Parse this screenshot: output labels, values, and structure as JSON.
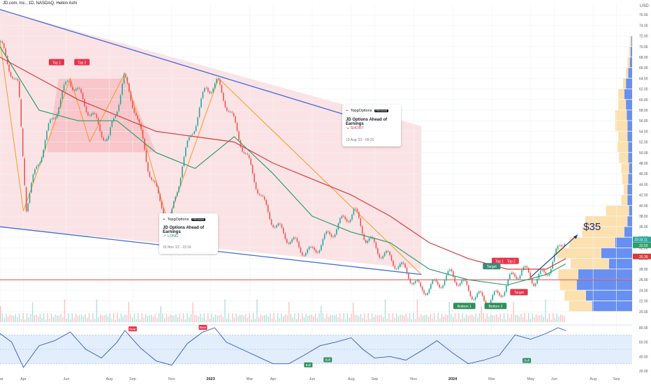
{
  "header": {
    "symbol_line": "JD.com, Inc., 1D, NASDAQ, Heikin Ashi"
  },
  "colors": {
    "up": "#26a69a",
    "down": "#ef5350",
    "channel": "#3f6bdc",
    "zigzag": "#f59a23",
    "sma_fast": "#2e9e6b",
    "sma_slow": "#d93a3a",
    "zone_fill": "#fbe0e2",
    "support_line": "#e04848",
    "rsi": "#2f55d4",
    "rsi_band": "#e3eefc",
    "vp_blue": "#4c7cf0",
    "vp_orange": "#f9c76b",
    "accent_red": "#e8334a",
    "accent_green": "#2f8f5b"
  },
  "chart_data": [
    {
      "type": "candlestick",
      "title": "",
      "price_axis_unit": "USD",
      "x_ticks": [
        "Mar",
        "Apr",
        "Jun",
        "Aug",
        "Sep",
        "Nov",
        "2023",
        "Mar",
        "Apr",
        "Jun",
        "Aug",
        "Sep",
        "Nov",
        "2024",
        "Mar",
        "May",
        "Jun",
        "Aug",
        "Sep"
      ],
      "x_tick_t": [
        0.0,
        0.6,
        1.7,
        2.8,
        3.4,
        4.4,
        5.4,
        6.4,
        7.0,
        8.0,
        9.0,
        9.6,
        10.6,
        11.6,
        12.6,
        13.6,
        14.2,
        15.2,
        15.8
      ],
      "ylim": [
        18,
        78
      ],
      "y_ticks": [
        20,
        22,
        24,
        26,
        28,
        30,
        32,
        34,
        36,
        38,
        40,
        42,
        44,
        46,
        48,
        50,
        52,
        54,
        56,
        58,
        60,
        62,
        64,
        66,
        68,
        70,
        72,
        74,
        76
      ],
      "price_path": [
        [
          0,
          71
        ],
        [
          0.5,
          62
        ],
        [
          0.7,
          40
        ],
        [
          1.0,
          48
        ],
        [
          1.3,
          55
        ],
        [
          1.8,
          64
        ],
        [
          2.3,
          58
        ],
        [
          2.8,
          52
        ],
        [
          3.2,
          64
        ],
        [
          3.5,
          58
        ],
        [
          3.8,
          48
        ],
        [
          4.1,
          41
        ],
        [
          4.4,
          37
        ],
        [
          4.7,
          48
        ],
        [
          5.0,
          55
        ],
        [
          5.3,
          62
        ],
        [
          5.6,
          63
        ],
        [
          5.9,
          58
        ],
        [
          6.2,
          52
        ],
        [
          6.5,
          46
        ],
        [
          6.8,
          40
        ],
        [
          7.1,
          36
        ],
        [
          7.4,
          34
        ],
        [
          7.7,
          32
        ],
        [
          8.0,
          31
        ],
        [
          8.4,
          34
        ],
        [
          8.8,
          37
        ],
        [
          9.1,
          39
        ],
        [
          9.4,
          34
        ],
        [
          9.8,
          31
        ],
        [
          10.2,
          29
        ],
        [
          10.5,
          27
        ],
        [
          10.8,
          24
        ],
        [
          11.2,
          25
        ],
        [
          11.6,
          27
        ],
        [
          11.9,
          25
        ],
        [
          12.2,
          23
        ],
        [
          12.5,
          22
        ],
        [
          12.8,
          23
        ],
        [
          13.1,
          26
        ],
        [
          13.4,
          28
        ],
        [
          13.7,
          26
        ],
        [
          14.0,
          27
        ],
        [
          14.3,
          31
        ],
        [
          14.5,
          34
        ]
      ],
      "candle_dates_t": {
        "start": 0,
        "end": 14.5
      },
      "channel_upper": [
        [
          0,
          77
        ],
        [
          9.8,
          55
        ]
      ],
      "channel_lower": [
        [
          0,
          36
        ],
        [
          10.8,
          27
        ]
      ],
      "support_level": 26,
      "last_price": 33.1,
      "price_labels": [
        {
          "text": "JD",
          "value": "33.11",
          "color": "#26a69a"
        },
        {
          "text": "",
          "value": "32.50",
          "color": "#2e9e6b"
        },
        {
          "text": "",
          "value": "30.39",
          "color": "#d93a3a"
        }
      ],
      "series": [
        {
          "name": "",
          "values_path": [
            [
              0,
              70
            ],
            [
              1,
              58
            ],
            [
              2,
              56
            ],
            [
              3,
              56
            ],
            [
              4,
              50
            ],
            [
              5,
              47
            ],
            [
              6,
              53
            ],
            [
              7,
              46
            ],
            [
              8,
              38
            ],
            [
              9,
              35
            ],
            [
              10,
              33
            ],
            [
              11,
              28
            ],
            [
              12,
              26
            ],
            [
              13,
              25
            ],
            [
              14,
              27
            ],
            [
              14.5,
              29
            ]
          ]
        },
        {
          "name": "",
          "values_path": [
            [
              0,
              68
            ],
            [
              1,
              64
            ],
            [
              2,
              60
            ],
            [
              3,
              57
            ],
            [
              4,
              54
            ],
            [
              5,
              53
            ],
            [
              6,
              52
            ],
            [
              7,
              48
            ],
            [
              8,
              45
            ],
            [
              9,
              42
            ],
            [
              10,
              38
            ],
            [
              11,
              33
            ],
            [
              12,
              30
            ],
            [
              13,
              28
            ],
            [
              14,
              28
            ],
            [
              14.5,
              30
            ]
          ]
        }
      ],
      "patterns": [
        {
          "label": "Top 1",
          "kind": "top"
        },
        {
          "label": "Top 2",
          "kind": "top"
        },
        {
          "label": "Top 1",
          "kind": "top"
        },
        {
          "label": "Top 2",
          "kind": "top"
        },
        {
          "label": "Bottom 1",
          "kind": "bottom"
        },
        {
          "label": "Bottom 2",
          "kind": "bottom"
        },
        {
          "label": "Target",
          "kind": "target"
        },
        {
          "label": "Target",
          "kind": "target"
        }
      ],
      "target_annotation": "$35",
      "ideas": [
        {
          "brand": "TopgOptions",
          "badge": "PREMIUM",
          "title": "JD Options Ahead of Earnings",
          "direction": "LONG",
          "timestamp": "15 Nov '22 - 22:16"
        },
        {
          "brand": "TopgOptions",
          "badge": "PREMIUM",
          "title": "JD Options Ahead of Earnings",
          "direction": "SHORT",
          "timestamp": "13 Aug '23 - 09:31"
        }
      ],
      "volume_profile_rows": [
        {
          "price": 21,
          "blue": 0.52,
          "orange": 0.3
        },
        {
          "price": 23,
          "blue": 0.6,
          "orange": 0.28
        },
        {
          "price": 25,
          "blue": 0.72,
          "orange": 0.22
        },
        {
          "price": 27,
          "blue": 0.7,
          "orange": 0.26
        },
        {
          "price": 29,
          "blue": 0.3,
          "orange": 0.5
        },
        {
          "price": 31,
          "blue": 0.4,
          "orange": 0.58
        },
        {
          "price": 33,
          "blue": 0.22,
          "orange": 0.6
        },
        {
          "price": 35,
          "blue": 0.1,
          "orange": 0.55
        },
        {
          "price": 37,
          "blue": 0.06,
          "orange": 0.55
        },
        {
          "price": 39,
          "blue": 0.04,
          "orange": 0.3
        },
        {
          "price": 41,
          "blue": 0.06,
          "orange": 0.08
        },
        {
          "price": 43,
          "blue": 0.06,
          "orange": 0.05
        },
        {
          "price": 45,
          "blue": 0.05,
          "orange": 0.08
        },
        {
          "price": 47,
          "blue": 0.04,
          "orange": 0.1
        },
        {
          "price": 49,
          "blue": 0.05,
          "orange": 0.12
        },
        {
          "price": 51,
          "blue": 0.05,
          "orange": 0.14
        },
        {
          "price": 53,
          "blue": 0.06,
          "orange": 0.12
        },
        {
          "price": 55,
          "blue": 0.06,
          "orange": 0.16
        },
        {
          "price": 57,
          "blue": 0.07,
          "orange": 0.15
        },
        {
          "price": 59,
          "blue": 0.08,
          "orange": 0.1
        },
        {
          "price": 61,
          "blue": 0.1,
          "orange": 0.08
        },
        {
          "price": 63,
          "blue": 0.08,
          "orange": 0.04
        },
        {
          "price": 65,
          "blue": 0.05,
          "orange": 0.03
        },
        {
          "price": 67,
          "blue": 0.03,
          "orange": 0.03
        },
        {
          "price": 69,
          "blue": 0.02,
          "orange": 0.02
        },
        {
          "price": 71,
          "blue": 0.01,
          "orange": 0.02
        }
      ]
    },
    {
      "type": "line",
      "title": "",
      "ylim": [
        20,
        80
      ],
      "y_ticks": [
        20,
        40,
        60,
        80
      ],
      "band": [
        30,
        70
      ],
      "rsi_path": [
        [
          0,
          72
        ],
        [
          0.3,
          60
        ],
        [
          0.6,
          25
        ],
        [
          1.0,
          55
        ],
        [
          1.4,
          62
        ],
        [
          1.8,
          74
        ],
        [
          2.2,
          50
        ],
        [
          2.6,
          38
        ],
        [
          3.0,
          60
        ],
        [
          3.2,
          76
        ],
        [
          3.6,
          52
        ],
        [
          4.0,
          34
        ],
        [
          4.4,
          28
        ],
        [
          4.8,
          58
        ],
        [
          5.2,
          74
        ],
        [
          5.5,
          80
        ],
        [
          5.8,
          60
        ],
        [
          6.2,
          50
        ],
        [
          6.6,
          40
        ],
        [
          7.0,
          30
        ],
        [
          7.4,
          30
        ],
        [
          7.8,
          42
        ],
        [
          8.2,
          55
        ],
        [
          8.6,
          60
        ],
        [
          9.0,
          66
        ],
        [
          9.3,
          50
        ],
        [
          9.6,
          38
        ],
        [
          10.0,
          40
        ],
        [
          10.4,
          35
        ],
        [
          10.8,
          48
        ],
        [
          11.2,
          62
        ],
        [
          11.6,
          45
        ],
        [
          12.0,
          30
        ],
        [
          12.4,
          35
        ],
        [
          12.8,
          42
        ],
        [
          13.2,
          70
        ],
        [
          13.6,
          64
        ],
        [
          14.0,
          72
        ],
        [
          14.3,
          80
        ],
        [
          14.5,
          76
        ]
      ],
      "markers": [
        {
          "label": "Bear",
          "kind": "bear"
        },
        {
          "label": "Bear",
          "kind": "bear"
        },
        {
          "label": "Bull",
          "kind": "bull"
        },
        {
          "label": "Bull",
          "kind": "bull"
        },
        {
          "label": "Bull",
          "kind": "bull"
        }
      ]
    }
  ]
}
